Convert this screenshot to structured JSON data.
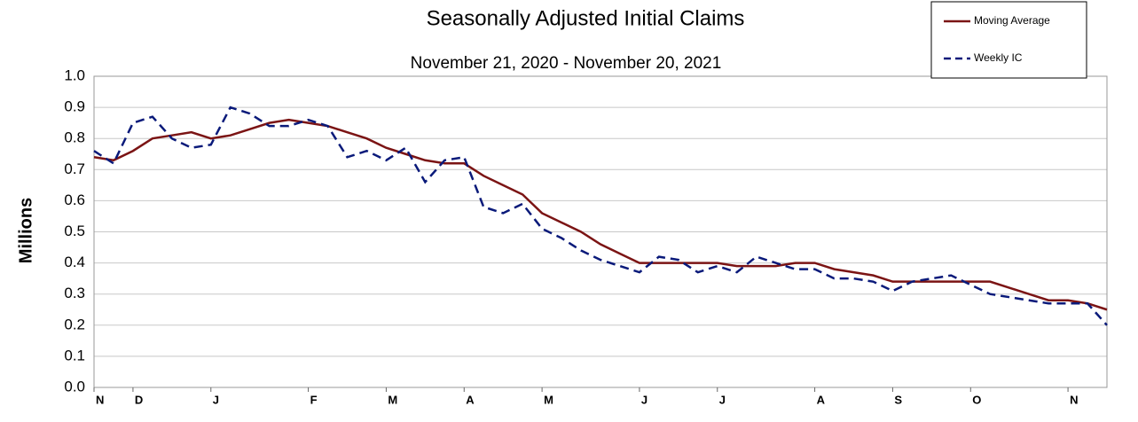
{
  "chart_data": {
    "type": "line",
    "title": "Seasonally Adjusted Initial Claims",
    "subtitle": "November 21, 2020 - November 20, 2021",
    "y_label": "Millions",
    "categories": [
      "N",
      null,
      "D",
      null,
      null,
      null,
      "J",
      null,
      null,
      null,
      null,
      "F",
      null,
      null,
      null,
      "M",
      null,
      null,
      null,
      "A",
      null,
      null,
      null,
      "M",
      null,
      null,
      null,
      null,
      "J",
      null,
      null,
      null,
      "J",
      null,
      null,
      null,
      null,
      "A",
      null,
      null,
      null,
      "S",
      null,
      null,
      null,
      "O",
      null,
      null,
      null,
      null,
      "N",
      null,
      null
    ],
    "series": [
      {
        "name": "Moving Average",
        "color": "#7b1414",
        "style": "solid",
        "values": [
          0.74,
          0.73,
          0.76,
          0.8,
          0.81,
          0.82,
          0.8,
          0.81,
          0.83,
          0.85,
          0.86,
          0.85,
          0.84,
          0.82,
          0.8,
          0.77,
          0.75,
          0.73,
          0.72,
          0.72,
          0.68,
          0.65,
          0.62,
          0.56,
          0.53,
          0.5,
          0.46,
          0.43,
          0.4,
          0.4,
          0.4,
          0.4,
          0.4,
          0.39,
          0.39,
          0.39,
          0.4,
          0.4,
          0.38,
          0.37,
          0.36,
          0.34,
          0.34,
          0.34,
          0.34,
          0.34,
          0.34,
          0.32,
          0.3,
          0.28,
          0.28,
          0.27,
          0.25
        ]
      },
      {
        "name": "Weekly IC",
        "color": "#0a1a7a",
        "style": "dashed",
        "values": [
          0.76,
          0.72,
          0.85,
          0.87,
          0.8,
          0.77,
          0.78,
          0.9,
          0.88,
          0.84,
          0.84,
          0.86,
          0.84,
          0.74,
          0.76,
          0.73,
          0.77,
          0.66,
          0.73,
          0.74,
          0.58,
          0.56,
          0.59,
          0.51,
          0.48,
          0.44,
          0.41,
          0.39,
          0.37,
          0.42,
          0.41,
          0.37,
          0.39,
          0.37,
          0.42,
          0.4,
          0.38,
          0.38,
          0.35,
          0.35,
          0.34,
          0.31,
          0.34,
          0.35,
          0.36,
          0.33,
          0.3,
          0.29,
          0.28,
          0.27,
          0.27,
          0.27,
          0.2
        ]
      }
    ],
    "ylim": [
      0,
      1
    ],
    "yticks": [
      {
        "value": 0,
        "label": "0.0"
      },
      0.1,
      0.2,
      0.3,
      0.4,
      0.5,
      0.6,
      0.7,
      0.8,
      0.9,
      {
        "value": 1,
        "label": "1.0"
      }
    ],
    "grid": true,
    "legend": "top-right"
  }
}
